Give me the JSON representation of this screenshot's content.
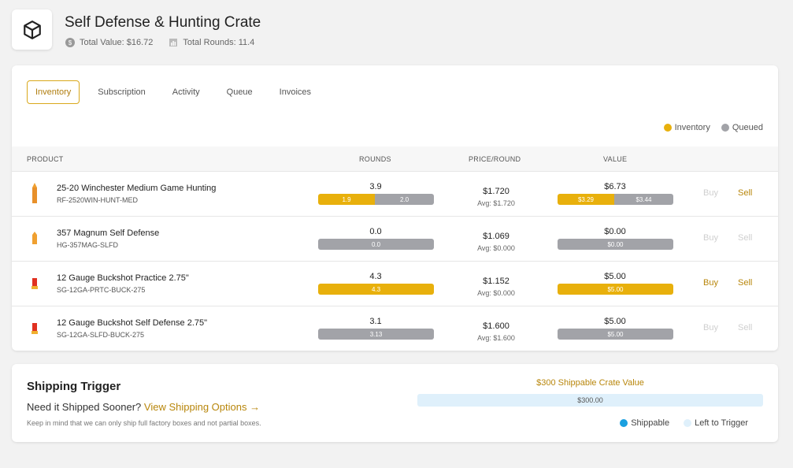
{
  "header": {
    "title": "Self Defense & Hunting Crate",
    "total_value": "Total Value: $16.72",
    "total_rounds": "Total Rounds: 11.4"
  },
  "tabs": [
    "Inventory",
    "Subscription",
    "Activity",
    "Queue",
    "Invoices"
  ],
  "active_tab": "Inventory",
  "legend": {
    "inventory": "Inventory",
    "queued": "Queued"
  },
  "colors": {
    "inventory": "#e8b00c",
    "queued": "#a2a3a8",
    "accent": "#b8860b",
    "shippable": "#1aa0e0",
    "left": "#dff0fb"
  },
  "table": {
    "headers": {
      "product": "PRODUCT",
      "rounds": "ROUNDS",
      "price": "PRICE/ROUND",
      "value": "VALUE"
    },
    "rows": [
      {
        "name": "25-20 Winchester Medium Game Hunting",
        "sku": "RF-2520WIN-HUNT-MED",
        "icon": "rifle-cartridge-icon",
        "rounds": "3.9",
        "rounds_inv": "1.9",
        "rounds_inv_frac": 0.49,
        "rounds_queued": "2.0",
        "price": "$1.720",
        "avg": "Avg: $1.720",
        "value": "$6.73",
        "value_inv": "$3.29",
        "value_inv_frac": 0.49,
        "value_queued": "$3.44",
        "buy": "Buy",
        "sell": "Sell",
        "buy_enabled": false,
        "sell_enabled": true
      },
      {
        "name": "357 Magnum Self Defense",
        "sku": "HG-357MAG-SLFD",
        "icon": "handgun-cartridge-icon",
        "rounds": "0.0",
        "rounds_inv": "",
        "rounds_inv_frac": 0,
        "rounds_queued": "0.0",
        "price": "$1.069",
        "avg": "Avg: $0.000",
        "value": "$0.00",
        "value_inv": "",
        "value_inv_frac": 0,
        "value_queued": "$0.00",
        "buy": "Buy",
        "sell": "Sell",
        "buy_enabled": false,
        "sell_enabled": false
      },
      {
        "name": "12 Gauge Buckshot Practice 2.75\"",
        "sku": "SG-12GA-PRTC-BUCK-275",
        "icon": "shotgun-shell-icon",
        "rounds": "4.3",
        "rounds_inv": "4.3",
        "rounds_inv_frac": 1,
        "rounds_queued": "",
        "price": "$1.152",
        "avg": "Avg: $0.000",
        "value": "$5.00",
        "value_inv": "$5.00",
        "value_inv_frac": 1,
        "value_queued": "",
        "buy": "Buy",
        "sell": "Sell",
        "buy_enabled": true,
        "sell_enabled": true
      },
      {
        "name": "12 Gauge Buckshot Self Defense 2.75\"",
        "sku": "SG-12GA-SLFD-BUCK-275",
        "icon": "shotgun-shell-icon",
        "rounds": "3.1",
        "rounds_inv": "",
        "rounds_inv_frac": 0,
        "rounds_queued": "3.13",
        "price": "$1.600",
        "avg": "Avg: $1.600",
        "value": "$5.00",
        "value_inv": "",
        "value_inv_frac": 0,
        "value_queued": "$5.00",
        "buy": "Buy",
        "sell": "Sell",
        "buy_enabled": false,
        "sell_enabled": false
      }
    ]
  },
  "shipping": {
    "title": "Shipping Trigger",
    "question": "Need it Shipped Sooner?",
    "link": "View Shipping Options →",
    "note": "Keep in mind that we can only ship full factory boxes and not partial boxes.",
    "bar_label": "$300 Shippable Crate Value",
    "bar_value": "$300.00",
    "legend_shippable": "Shippable",
    "legend_left": "Left to Trigger"
  }
}
